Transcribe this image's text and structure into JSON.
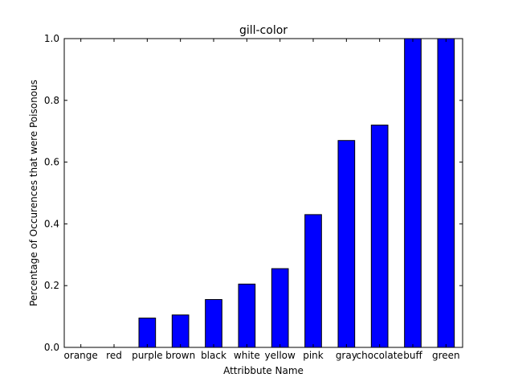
{
  "chart_data": {
    "type": "bar",
    "title": "gill-color",
    "xlabel": "Attribbute Name",
    "ylabel": "Percentage of Occurences that were Poisonous",
    "categories": [
      "orange",
      "red",
      "purple",
      "brown",
      "black",
      "white",
      "yellow",
      "pink",
      "gray",
      "chocolate",
      "buff",
      "green"
    ],
    "values": [
      0.0,
      0.0,
      0.095,
      0.105,
      0.155,
      0.205,
      0.255,
      0.43,
      0.67,
      0.72,
      1.0,
      1.0
    ],
    "ylim": [
      0.0,
      1.0
    ],
    "yticks": [
      "0.0",
      "0.2",
      "0.4",
      "0.6",
      "0.8",
      "1.0"
    ],
    "grid": false,
    "bar_color": "#0000ff",
    "edge_color": "#000000"
  }
}
